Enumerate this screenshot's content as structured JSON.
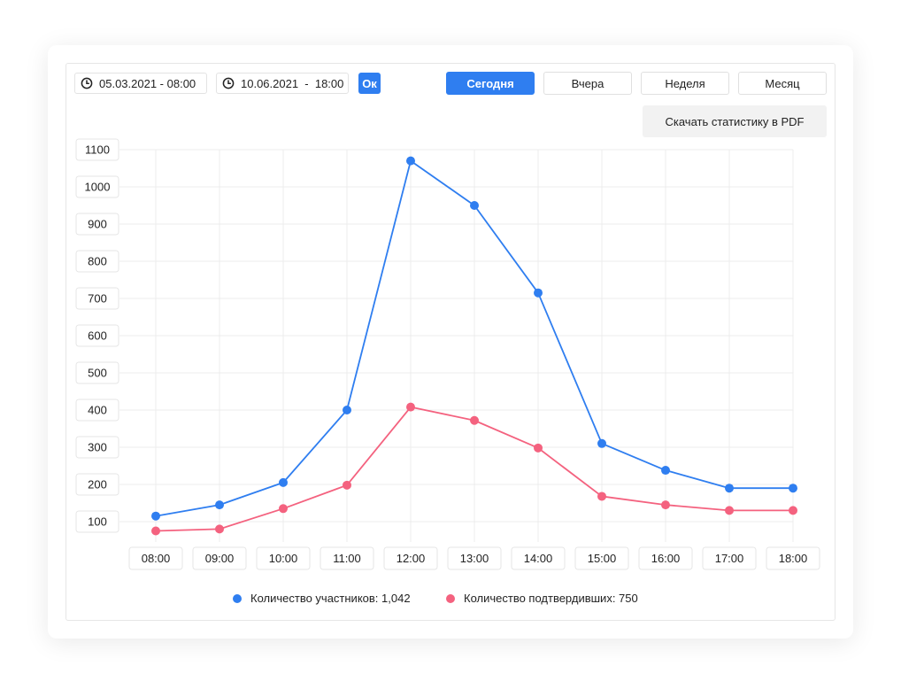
{
  "filters": {
    "date_from": "05.03.2021 - 08:00",
    "date_to": "10.06.2021  -  18:00",
    "ok_label": "Ок",
    "periods": [
      {
        "label": "Сегодня",
        "active": true
      },
      {
        "label": "Вчера",
        "active": false
      },
      {
        "label": "Неделя",
        "active": false
      },
      {
        "label": "Месяц",
        "active": false
      }
    ],
    "pdf_label": "Скачать статистику в PDF"
  },
  "legend": {
    "participants": "Количество участников: 1,042",
    "confirmed": "Количество подтвердивших: 750"
  },
  "colors": {
    "accent": "#2f7ef0",
    "participants": "#2f7ef0",
    "confirmed": "#f4627f"
  },
  "chart_data": {
    "type": "line",
    "categories": [
      "08:00",
      "09:00",
      "10:00",
      "11:00",
      "12:00",
      "13:00",
      "14:00",
      "15:00",
      "16:00",
      "17:00",
      "18:00"
    ],
    "series": [
      {
        "name": "Количество участников",
        "values": [
          115,
          145,
          205,
          400,
          1070,
          950,
          715,
          310,
          238,
          190,
          190
        ]
      },
      {
        "name": "Количество подтвердивших",
        "values": [
          75,
          80,
          135,
          198,
          408,
          372,
          298,
          168,
          145,
          130,
          130
        ]
      }
    ],
    "yticks": [
      100,
      200,
      300,
      400,
      500,
      600,
      700,
      800,
      900,
      1000,
      1100
    ],
    "ylim": [
      100,
      1100
    ],
    "grid": true
  }
}
